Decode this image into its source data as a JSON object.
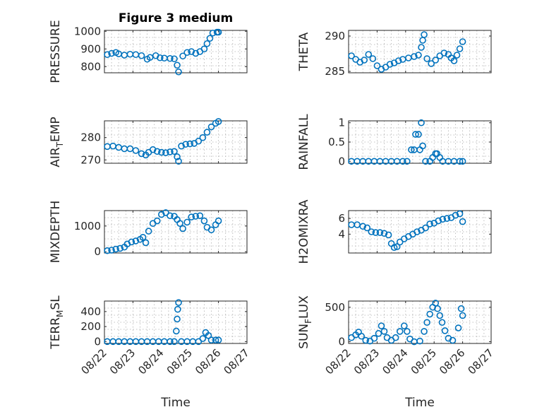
{
  "chart_data": [
    {
      "type": "scatter",
      "id": "pressure",
      "title": "Figure 3 medium",
      "ylabel": "PRESSURE",
      "ylabel_sub": "",
      "ylabel_tail": "",
      "xlabel": "",
      "xlim": [
        0,
        5
      ],
      "ylim": [
        765,
        1005
      ],
      "yticks": [
        800,
        900,
        1000
      ],
      "ytick_labels": [
        "800",
        "900",
        "1000"
      ],
      "xticks": [
        0,
        1,
        2,
        3,
        4,
        5
      ],
      "xtick_labels": [],
      "grid": true,
      "points": [
        [
          0.1,
          868
        ],
        [
          0.25,
          875
        ],
        [
          0.4,
          880
        ],
        [
          0.5,
          872
        ],
        [
          0.7,
          865
        ],
        [
          0.9,
          870
        ],
        [
          1.1,
          868
        ],
        [
          1.3,
          862
        ],
        [
          1.5,
          842
        ],
        [
          1.6,
          852
        ],
        [
          1.8,
          862
        ],
        [
          1.95,
          850
        ],
        [
          2.1,
          848
        ],
        [
          2.3,
          846
        ],
        [
          2.45,
          844
        ],
        [
          2.55,
          808
        ],
        [
          2.6,
          770
        ],
        [
          2.75,
          860
        ],
        [
          2.9,
          880
        ],
        [
          3.05,
          885
        ],
        [
          3.2,
          875
        ],
        [
          3.35,
          885
        ],
        [
          3.5,
          900
        ],
        [
          3.6,
          930
        ],
        [
          3.7,
          960
        ],
        [
          3.8,
          990
        ],
        [
          3.95,
          995
        ],
        [
          4.0,
          995
        ]
      ]
    },
    {
      "type": "scatter",
      "id": "theta",
      "title": "",
      "ylabel": "THETA",
      "ylabel_sub": "",
      "ylabel_tail": "",
      "xlabel": "",
      "xlim": [
        0,
        5
      ],
      "ylim": [
        284.8,
        290.8
      ],
      "yticks": [
        285,
        290
      ],
      "ytick_labels": [
        "285",
        "290"
      ],
      "xticks": [
        0,
        1,
        2,
        3,
        4,
        5
      ],
      "xtick_labels": [],
      "grid": true,
      "points": [
        [
          0.1,
          287.2
        ],
        [
          0.25,
          286.7
        ],
        [
          0.4,
          286.3
        ],
        [
          0.55,
          286.6
        ],
        [
          0.7,
          287.4
        ],
        [
          0.85,
          286.8
        ],
        [
          1.0,
          285.8
        ],
        [
          1.15,
          285.3
        ],
        [
          1.3,
          285.6
        ],
        [
          1.45,
          286.0
        ],
        [
          1.6,
          286.2
        ],
        [
          1.75,
          286.5
        ],
        [
          1.9,
          286.7
        ],
        [
          2.1,
          286.9
        ],
        [
          2.3,
          287.1
        ],
        [
          2.45,
          287.3
        ],
        [
          2.55,
          288.4
        ],
        [
          2.6,
          289.4
        ],
        [
          2.65,
          290.2
        ],
        [
          2.75,
          286.8
        ],
        [
          2.9,
          286.1
        ],
        [
          3.05,
          286.6
        ],
        [
          3.2,
          287.2
        ],
        [
          3.35,
          287.6
        ],
        [
          3.5,
          287.4
        ],
        [
          3.6,
          286.9
        ],
        [
          3.7,
          286.5
        ],
        [
          3.8,
          287.3
        ],
        [
          3.9,
          288.2
        ],
        [
          4.0,
          289.2
        ]
      ]
    },
    {
      "type": "scatter",
      "id": "air_temp",
      "title": "",
      "ylabel": "AIR",
      "ylabel_sub": "T",
      "ylabel_tail": "EMP",
      "xlabel": "",
      "xlim": [
        0,
        5
      ],
      "ylim": [
        268.5,
        287.5
      ],
      "yticks": [
        270,
        280
      ],
      "ytick_labels": [
        "270",
        "280"
      ],
      "xticks": [
        0,
        1,
        2,
        3,
        4,
        5
      ],
      "xtick_labels": [],
      "grid": true,
      "points": [
        [
          0.1,
          276.0
        ],
        [
          0.3,
          276.2
        ],
        [
          0.5,
          275.6
        ],
        [
          0.7,
          275.0
        ],
        [
          0.9,
          275.0
        ],
        [
          1.1,
          274.2
        ],
        [
          1.3,
          272.8
        ],
        [
          1.45,
          272.2
        ],
        [
          1.55,
          273.4
        ],
        [
          1.7,
          274.6
        ],
        [
          1.85,
          273.8
        ],
        [
          2.0,
          273.4
        ],
        [
          2.15,
          273.2
        ],
        [
          2.3,
          273.6
        ],
        [
          2.45,
          273.8
        ],
        [
          2.55,
          271.4
        ],
        [
          2.6,
          269.4
        ],
        [
          2.7,
          276.2
        ],
        [
          2.85,
          277.0
        ],
        [
          3.0,
          277.2
        ],
        [
          3.15,
          277.4
        ],
        [
          3.3,
          278.4
        ],
        [
          3.45,
          280.0
        ],
        [
          3.6,
          282.4
        ],
        [
          3.75,
          284.8
        ],
        [
          3.9,
          286.4
        ],
        [
          4.0,
          287.2
        ]
      ]
    },
    {
      "type": "scatter",
      "id": "rainfall",
      "title": "",
      "ylabel": "RAINFALL",
      "ylabel_sub": "",
      "ylabel_tail": "",
      "xlabel": "",
      "xlim": [
        0,
        5
      ],
      "ylim": [
        -0.05,
        1.05
      ],
      "yticks": [
        0,
        0.5,
        1
      ],
      "ytick_labels": [
        "0",
        "0.5",
        "1"
      ],
      "xticks": [
        0,
        1,
        2,
        3,
        4,
        5
      ],
      "xtick_labels": [],
      "grid": true,
      "points": [
        [
          0.1,
          0
        ],
        [
          0.3,
          0
        ],
        [
          0.5,
          0
        ],
        [
          0.7,
          0
        ],
        [
          0.9,
          0
        ],
        [
          1.1,
          0
        ],
        [
          1.3,
          0
        ],
        [
          1.5,
          0
        ],
        [
          1.7,
          0
        ],
        [
          1.9,
          0
        ],
        [
          2.05,
          0
        ],
        [
          2.2,
          0.3
        ],
        [
          2.3,
          0.3
        ],
        [
          2.35,
          0.7
        ],
        [
          2.45,
          0.7
        ],
        [
          2.5,
          0.3
        ],
        [
          2.55,
          1.0
        ],
        [
          2.6,
          0.4
        ],
        [
          2.7,
          0
        ],
        [
          2.85,
          0
        ],
        [
          2.95,
          0.1
        ],
        [
          3.05,
          0.2
        ],
        [
          3.1,
          0.2
        ],
        [
          3.2,
          0.1
        ],
        [
          3.3,
          0
        ],
        [
          3.5,
          0
        ],
        [
          3.7,
          0
        ],
        [
          3.9,
          0
        ],
        [
          4.0,
          0
        ]
      ]
    },
    {
      "type": "scatter",
      "id": "mixdepth",
      "title": "",
      "ylabel": "MIXDEPTH",
      "ylabel_sub": "",
      "ylabel_tail": "",
      "xlabel": "",
      "xlim": [
        0,
        5
      ],
      "ylim": [
        -50,
        1600
      ],
      "yticks": [
        0,
        1000
      ],
      "ytick_labels": [
        "0",
        "1000"
      ],
      "xticks": [
        0,
        1,
        2,
        3,
        4,
        5
      ],
      "xtick_labels": [],
      "grid": true,
      "points": [
        [
          0.1,
          40
        ],
        [
          0.25,
          60
        ],
        [
          0.4,
          100
        ],
        [
          0.55,
          130
        ],
        [
          0.7,
          180
        ],
        [
          0.8,
          300
        ],
        [
          0.95,
          380
        ],
        [
          1.1,
          420
        ],
        [
          1.25,
          480
        ],
        [
          1.35,
          560
        ],
        [
          1.45,
          350
        ],
        [
          1.55,
          800
        ],
        [
          1.7,
          1100
        ],
        [
          1.85,
          1200
        ],
        [
          2.0,
          1450
        ],
        [
          2.15,
          1520
        ],
        [
          2.3,
          1400
        ],
        [
          2.45,
          1380
        ],
        [
          2.55,
          1250
        ],
        [
          2.65,
          1100
        ],
        [
          2.75,
          900
        ],
        [
          2.9,
          1150
        ],
        [
          3.05,
          1350
        ],
        [
          3.2,
          1380
        ],
        [
          3.35,
          1400
        ],
        [
          3.5,
          1200
        ],
        [
          3.6,
          950
        ],
        [
          3.75,
          850
        ],
        [
          3.9,
          1050
        ],
        [
          4.0,
          1200
        ]
      ]
    },
    {
      "type": "scatter",
      "id": "h2omixra",
      "title": "",
      "ylabel": "H2OMIXRA",
      "ylabel_sub": "",
      "ylabel_tail": "",
      "xlabel": "",
      "xlim": [
        0,
        5
      ],
      "ylim": [
        1.6,
        7.0
      ],
      "yticks": [
        4,
        6
      ],
      "ytick_labels": [
        "4",
        "6"
      ],
      "xticks": [
        0,
        1,
        2,
        3,
        4,
        5
      ],
      "xtick_labels": [],
      "grid": true,
      "points": [
        [
          0.1,
          5.2
        ],
        [
          0.3,
          5.2
        ],
        [
          0.5,
          5.0
        ],
        [
          0.65,
          4.8
        ],
        [
          0.8,
          4.3
        ],
        [
          0.95,
          4.2
        ],
        [
          1.1,
          4.2
        ],
        [
          1.25,
          4.1
        ],
        [
          1.4,
          3.9
        ],
        [
          1.5,
          2.8
        ],
        [
          1.6,
          2.3
        ],
        [
          1.7,
          2.4
        ],
        [
          1.8,
          3.0
        ],
        [
          1.95,
          3.4
        ],
        [
          2.1,
          3.7
        ],
        [
          2.25,
          4.0
        ],
        [
          2.4,
          4.3
        ],
        [
          2.55,
          4.5
        ],
        [
          2.7,
          4.8
        ],
        [
          2.85,
          5.3
        ],
        [
          3.0,
          5.4
        ],
        [
          3.15,
          5.7
        ],
        [
          3.3,
          5.9
        ],
        [
          3.45,
          6.0
        ],
        [
          3.6,
          6.1
        ],
        [
          3.75,
          6.4
        ],
        [
          3.9,
          6.6
        ],
        [
          4.0,
          5.6
        ]
      ]
    },
    {
      "type": "scatter",
      "id": "terr_msl",
      "title": "",
      "ylabel": "TERR",
      "ylabel_sub": "M",
      "ylabel_tail": "SL",
      "xlabel": "Time",
      "xlim": [
        0,
        5
      ],
      "ylim": [
        -25,
        540
      ],
      "yticks": [
        0,
        200,
        400
      ],
      "ytick_labels": [
        "0",
        "200",
        "400"
      ],
      "xticks": [
        0,
        1,
        2,
        3,
        4,
        5
      ],
      "xtick_labels": [
        "08/22",
        "08/23",
        "08/24",
        "08/25",
        "08/26",
        "08/27"
      ],
      "grid": true,
      "points": [
        [
          0.1,
          0
        ],
        [
          0.3,
          0
        ],
        [
          0.5,
          0
        ],
        [
          0.7,
          0
        ],
        [
          0.9,
          0
        ],
        [
          1.1,
          0
        ],
        [
          1.3,
          0
        ],
        [
          1.5,
          0
        ],
        [
          1.7,
          0
        ],
        [
          1.9,
          0
        ],
        [
          2.1,
          0
        ],
        [
          2.3,
          0
        ],
        [
          2.45,
          0
        ],
        [
          2.52,
          140
        ],
        [
          2.55,
          300
        ],
        [
          2.57,
          430
        ],
        [
          2.6,
          520
        ],
        [
          2.7,
          0
        ],
        [
          2.9,
          0
        ],
        [
          3.1,
          0
        ],
        [
          3.3,
          0
        ],
        [
          3.45,
          40
        ],
        [
          3.55,
          120
        ],
        [
          3.65,
          80
        ],
        [
          3.75,
          20
        ],
        [
          3.9,
          20
        ],
        [
          4.0,
          20
        ]
      ]
    },
    {
      "type": "scatter",
      "id": "sun_flux",
      "title": "",
      "ylabel": "SUN",
      "ylabel_sub": "F",
      "ylabel_tail": "LUX",
      "xlabel": "Time",
      "xlim": [
        0,
        5
      ],
      "ylim": [
        -25,
        590
      ],
      "yticks": [
        0,
        500
      ],
      "ytick_labels": [
        "0",
        "500"
      ],
      "xticks": [
        0,
        1,
        2,
        3,
        4,
        5
      ],
      "xtick_labels": [
        "08/22",
        "08/23",
        "08/24",
        "08/25",
        "08/26",
        "08/27"
      ],
      "grid": true,
      "points": [
        [
          0.1,
          60
        ],
        [
          0.25,
          100
        ],
        [
          0.35,
          140
        ],
        [
          0.45,
          80
        ],
        [
          0.6,
          20
        ],
        [
          0.75,
          10
        ],
        [
          0.9,
          50
        ],
        [
          1.05,
          120
        ],
        [
          1.15,
          230
        ],
        [
          1.25,
          150
        ],
        [
          1.35,
          60
        ],
        [
          1.5,
          20
        ],
        [
          1.65,
          60
        ],
        [
          1.8,
          150
        ],
        [
          1.95,
          230
        ],
        [
          2.05,
          150
        ],
        [
          2.15,
          40
        ],
        [
          2.3,
          0
        ],
        [
          2.5,
          10
        ],
        [
          2.65,
          150
        ],
        [
          2.75,
          280
        ],
        [
          2.85,
          400
        ],
        [
          2.95,
          500
        ],
        [
          3.05,
          560
        ],
        [
          3.12,
          480
        ],
        [
          3.2,
          380
        ],
        [
          3.28,
          280
        ],
        [
          3.38,
          160
        ],
        [
          3.5,
          50
        ],
        [
          3.65,
          20
        ],
        [
          3.85,
          200
        ],
        [
          3.95,
          480
        ],
        [
          4.0,
          380
        ]
      ]
    }
  ]
}
